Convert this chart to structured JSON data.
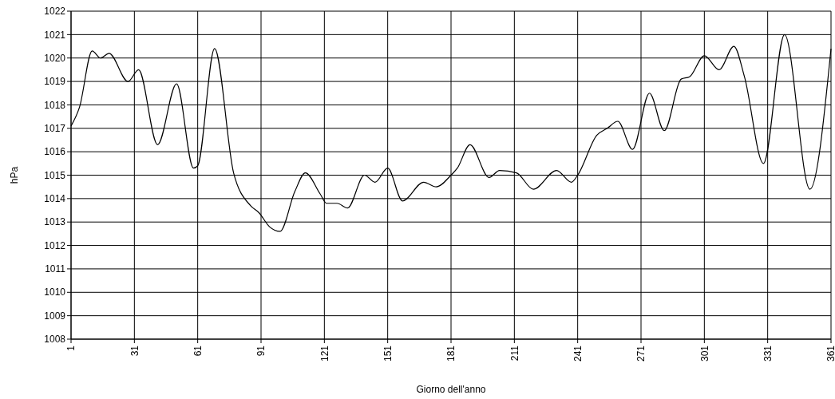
{
  "chart_data": {
    "type": "line",
    "xlabel": "Giorno dell'anno",
    "ylabel": "hPa",
    "xlim": [
      1,
      361
    ],
    "xticks": [
      1,
      31,
      61,
      91,
      121,
      151,
      181,
      211,
      241,
      271,
      301,
      331,
      361
    ],
    "ylim": [
      1008,
      1022
    ],
    "yticks": [
      1008,
      1009,
      1010,
      1011,
      1012,
      1013,
      1014,
      1015,
      1016,
      1017,
      1018,
      1019,
      1020,
      1021,
      1022
    ],
    "grid": true,
    "marker": "none",
    "line_style": "solid",
    "series": [
      {
        "color": "#000000",
        "x": [
          1,
          5,
          11,
          15,
          19,
          28,
          33,
          42,
          51,
          59,
          61,
          69,
          78,
          86,
          90,
          95,
          100,
          107,
          112,
          119,
          122,
          127,
          132,
          140,
          145,
          151,
          158,
          168,
          174,
          181,
          184,
          190,
          199,
          204,
          212,
          220,
          231,
          238,
          241,
          250,
          255,
          260,
          267,
          275,
          282,
          290,
          294,
          301,
          308,
          315,
          320,
          329,
          339,
          351,
          361
        ],
        "values": [
          1017.1,
          1017.9,
          1020.3,
          1020,
          1020.2,
          1019,
          1019.5,
          1016.3,
          1018.9,
          1015.3,
          1015.4,
          1020.4,
          1015.1,
          1013.7,
          1013.4,
          1012.8,
          1012.6,
          1014.3,
          1015.1,
          1014.2,
          1013.8,
          1013.8,
          1013.6,
          1015,
          1014.7,
          1015.3,
          1013.9,
          1014.7,
          1014.5,
          1015,
          1015.3,
          1016.3,
          1014.9,
          1015.2,
          1015.1,
          1014.4,
          1015.2,
          1014.7,
          1015,
          1016.7,
          1017,
          1017.3,
          1016.1,
          1018.5,
          1016.9,
          1019.1,
          1019.2,
          1020.1,
          1019.5,
          1020.5,
          1019.2,
          1015.5,
          1021,
          1014.4,
          1020.4
        ]
      }
    ]
  }
}
